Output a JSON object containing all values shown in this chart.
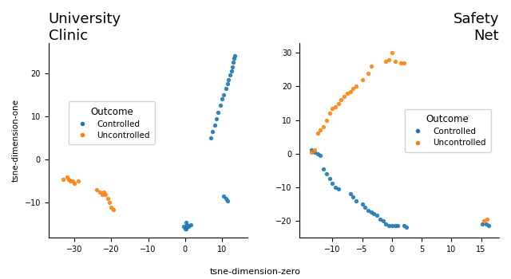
{
  "title_left": "University\nClinic",
  "title_right": "Safety\nNet",
  "xlabel": "tsne-dimension-zero",
  "ylabel": "tsne-dimension-one",
  "blue_color": "#1f77b4",
  "orange_color": "#ff7f0e",
  "legend_title": "Outcome",
  "legend_controlled": "Controlled",
  "legend_uncontrolled": "Uncontrolled",
  "left_blue_x": [
    13.5,
    13.2,
    13.0,
    12.8,
    12.5,
    12.2,
    11.8,
    11.5,
    11.0,
    10.5,
    10.0,
    9.5,
    9.0,
    8.5,
    8.0,
    7.5,
    7.0,
    10.5,
    11.0,
    11.5,
    0.2,
    0.5,
    1.0,
    1.5,
    0.0,
    -0.3,
    0.3
  ],
  "left_blue_y": [
    24,
    23.5,
    22.5,
    21.5,
    20.5,
    19.5,
    18.5,
    17.5,
    16.5,
    15.0,
    14.0,
    12.5,
    11.0,
    9.5,
    8.0,
    6.5,
    5.0,
    -8.5,
    -9.0,
    -9.5,
    -14.5,
    -15.0,
    -15.5,
    -15.0,
    -16.0,
    -15.5,
    -16.0
  ],
  "left_orange_x": [
    -33.0,
    -32.0,
    -31.5,
    -31.0,
    -30.5,
    -30.0,
    -29.0,
    -24.0,
    -23.0,
    -22.5,
    -22.0,
    -21.5,
    -21.0,
    -20.5,
    -20.0,
    -19.5
  ],
  "left_orange_y": [
    -4.5,
    -4.0,
    -4.5,
    -5.0,
    -5.0,
    -5.5,
    -5.0,
    -7.0,
    -7.5,
    -8.0,
    -7.5,
    -8.0,
    -9.0,
    -10.0,
    -11.0,
    -11.5
  ],
  "right_blue_x": [
    -13.5,
    -13.0,
    -12.5,
    -12.0,
    -11.5,
    -11.0,
    -10.5,
    -10.0,
    -9.5,
    -9.0,
    -7.0,
    -6.5,
    -6.0,
    -5.0,
    -4.5,
    -4.0,
    -3.5,
    -3.0,
    -2.5,
    -2.0,
    -1.5,
    -1.0,
    -0.5,
    0.0,
    0.5,
    1.0,
    2.0,
    2.5,
    15.2,
    15.8,
    16.2
  ],
  "right_blue_y": [
    1.0,
    0.5,
    0.0,
    -0.5,
    -4.5,
    -6.0,
    -7.5,
    -9.0,
    -10.0,
    -10.5,
    -12.0,
    -13.0,
    -14.0,
    -15.0,
    -16.0,
    -17.0,
    -17.5,
    -18.0,
    -18.5,
    -19.5,
    -20.0,
    -21.0,
    -21.5,
    -21.5,
    -21.5,
    -21.5,
    -21.5,
    -22.0,
    -21.0,
    -21.0,
    -21.5
  ],
  "right_orange_x": [
    -13.5,
    -13.0,
    -12.5,
    -12.0,
    -11.5,
    -11.0,
    -10.5,
    -10.0,
    -9.5,
    -9.0,
    -8.5,
    -8.0,
    -7.5,
    -7.0,
    -6.5,
    -6.0,
    -5.0,
    -4.0,
    -3.5,
    -1.0,
    -0.5,
    0.0,
    0.5,
    1.5,
    2.0,
    15.5,
    16.0
  ],
  "right_orange_y": [
    0.5,
    1.0,
    6.0,
    7.0,
    8.0,
    10.0,
    12.0,
    13.5,
    14.0,
    15.0,
    16.0,
    17.0,
    18.0,
    18.5,
    19.5,
    20.0,
    22.0,
    24.0,
    26.0,
    27.5,
    28.0,
    30.0,
    27.5,
    27.0,
    27.0,
    -20.0,
    -19.5
  ],
  "left_xlim": [
    -37,
    17
  ],
  "left_ylim": [
    -18,
    27
  ],
  "right_xlim": [
    -15.5,
    18
  ],
  "right_ylim": [
    -25,
    33
  ],
  "left_xticks": [
    -30,
    -20,
    -10,
    0,
    10
  ],
  "left_yticks": [
    -10,
    0,
    10,
    20
  ],
  "right_xticks": [
    -10,
    -5,
    0,
    5,
    10,
    15
  ],
  "right_yticks": [
    -20,
    -10,
    0,
    10,
    20,
    30
  ],
  "marker_size": 8,
  "marker_alpha": 0.85
}
